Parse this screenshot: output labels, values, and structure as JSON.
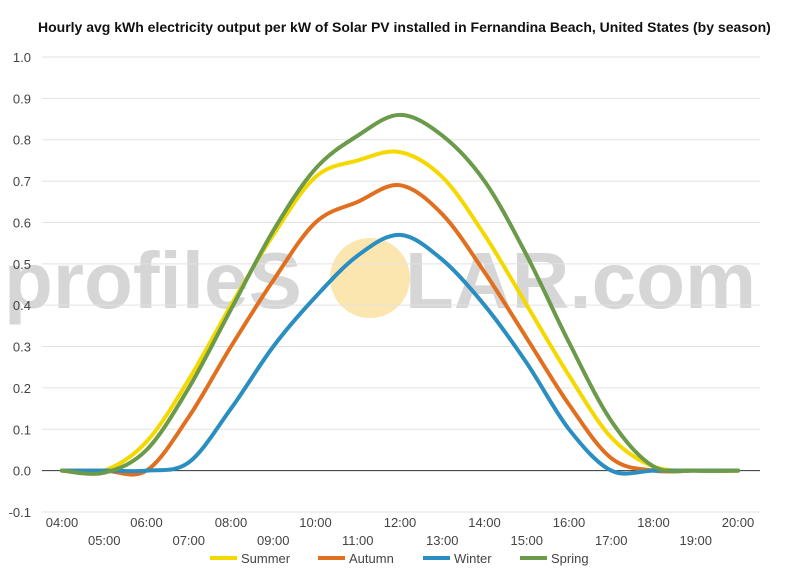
{
  "watermark": {
    "left_text": "profileS",
    "right_text": "LAR.com"
  },
  "chart_data": {
    "type": "line",
    "title": "Hourly avg kWh electricity output per kW of Solar PV installed in Fernandina Beach, United States (by season)",
    "xlabel": "",
    "ylabel": "",
    "ylim": [
      -0.1,
      1.0
    ],
    "yticks": [
      "1.0",
      "0.9",
      "0.8",
      "0.7",
      "0.6",
      "0.5",
      "0.4",
      "0.3",
      "0.2",
      "0.1",
      "0.0",
      "-0.1"
    ],
    "x": [
      "04:00",
      "05:00",
      "06:00",
      "07:00",
      "08:00",
      "09:00",
      "10:00",
      "11:00",
      "12:00",
      "13:00",
      "14:00",
      "15:00",
      "16:00",
      "17:00",
      "18:00",
      "19:00",
      "20:00"
    ],
    "grid": true,
    "legend_position": "bottom",
    "colors": {
      "Summer": "#f5d800",
      "Autumn": "#e07020",
      "Winter": "#2a8fc0",
      "Spring": "#6a9a4a",
      "zero_line": "#333333",
      "grid": "#e2e2e2",
      "sun": "#fbe6b0"
    },
    "series": [
      {
        "name": "Summer",
        "values": [
          0.0,
          0.0,
          0.07,
          0.22,
          0.4,
          0.57,
          0.71,
          0.75,
          0.77,
          0.71,
          0.57,
          0.4,
          0.23,
          0.08,
          0.01,
          0.0,
          0.0
        ]
      },
      {
        "name": "Autumn",
        "values": [
          0.0,
          0.0,
          0.0,
          0.13,
          0.3,
          0.46,
          0.6,
          0.65,
          0.69,
          0.62,
          0.48,
          0.32,
          0.16,
          0.03,
          0.0,
          0.0,
          0.0
        ]
      },
      {
        "name": "Winter",
        "values": [
          0.0,
          0.0,
          0.0,
          0.02,
          0.15,
          0.3,
          0.42,
          0.52,
          0.57,
          0.51,
          0.4,
          0.26,
          0.1,
          0.0,
          0.0,
          0.0,
          0.0
        ]
      },
      {
        "name": "Spring",
        "values": [
          0.0,
          -0.005,
          0.05,
          0.2,
          0.39,
          0.58,
          0.73,
          0.81,
          0.86,
          0.81,
          0.7,
          0.52,
          0.31,
          0.12,
          0.01,
          0.0,
          0.0
        ]
      }
    ]
  }
}
